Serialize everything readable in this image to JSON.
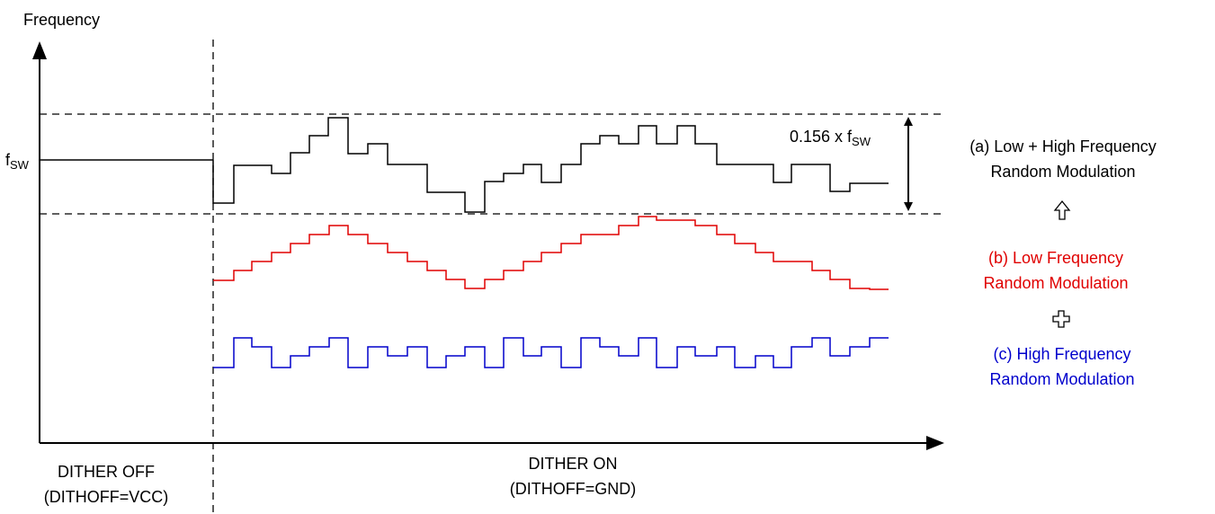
{
  "y_axis_label": "Frequency",
  "fsw_label": {
    "base": "f",
    "sub": "SW"
  },
  "amplitude_label": {
    "text": "0.156 x f",
    "sub": "SW"
  },
  "region_off": {
    "line1": "DITHER OFF",
    "line2": "(DITHOFF=VCC)"
  },
  "region_on": {
    "line1": "DITHER ON",
    "line2": "(DITHOFF=GND)"
  },
  "waveforms": {
    "combined": {
      "line1": "(a) Low + High Frequency",
      "line2": "Random Modulation",
      "color": "#000000"
    },
    "low_frequency": {
      "line1": "(b) Low Frequency",
      "line2": "Random Modulation",
      "color": "#e00000"
    },
    "high_frequency": {
      "line1": "(c) High Frequency",
      "line2": "Random Modulation",
      "color": "#0000cc"
    }
  },
  "icons": {
    "arrow": "up-outline-arrow-icon",
    "plus": "outline-plus-icon"
  }
}
